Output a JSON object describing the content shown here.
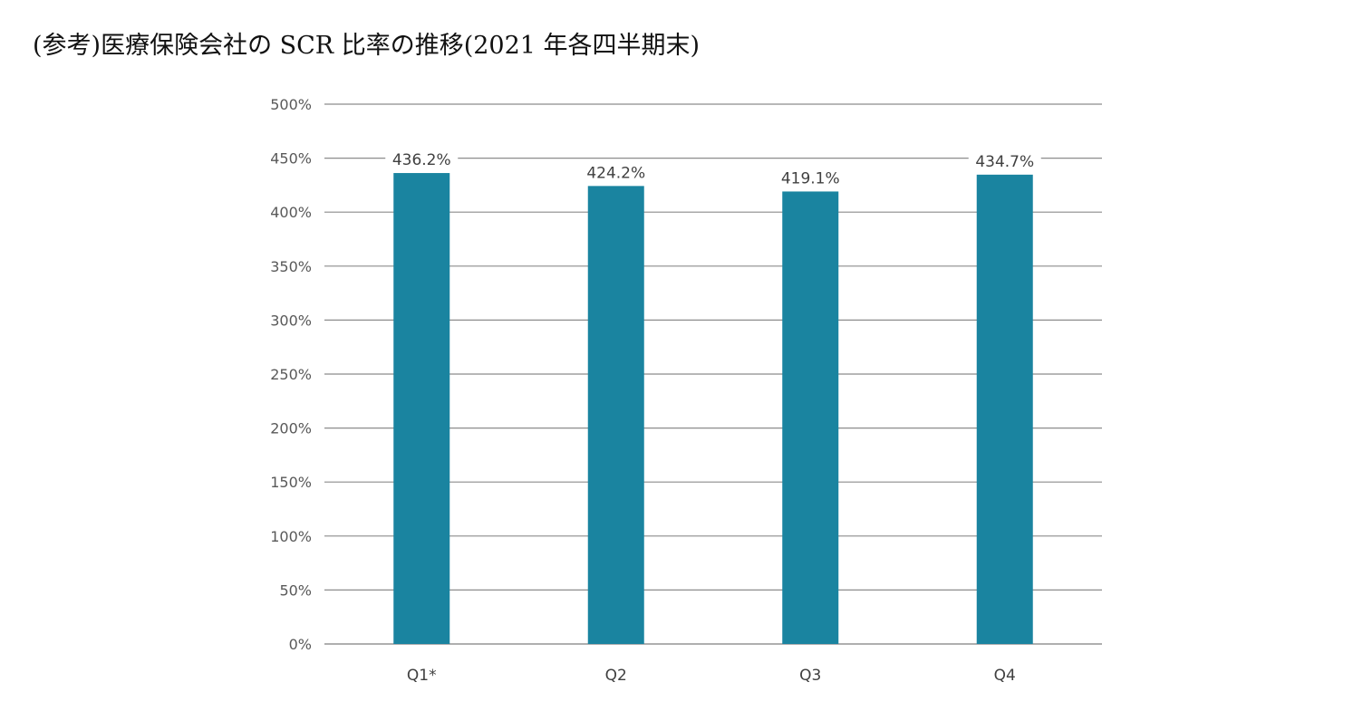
{
  "title": "(参考)医療保険会社の SCR 比率の推移(2021 年各四半期末)",
  "chart_data": {
    "type": "bar",
    "title": "(参考)医療保険会社の SCR 比率の推移(2021 年各四半期末)",
    "categories": [
      "Q1*",
      "Q2",
      "Q3",
      "Q4"
    ],
    "values": [
      436.2,
      424.2,
      419.1,
      434.7
    ],
    "data_labels": [
      "436.2%",
      "424.2%",
      "419.1%",
      "434.7%"
    ],
    "xlabel": "",
    "ylabel": "",
    "ylim": [
      0,
      500
    ],
    "yticks": [
      0,
      50,
      100,
      150,
      200,
      250,
      300,
      350,
      400,
      450,
      500
    ],
    "ytick_labels": [
      "0%",
      "50%",
      "100%",
      "150%",
      "200%",
      "250%",
      "300%",
      "350%",
      "400%",
      "450%",
      "500%"
    ],
    "grid": true,
    "legend": "none",
    "bar_color": "#1a84a0",
    "grid_color": "#8c8c8c"
  }
}
